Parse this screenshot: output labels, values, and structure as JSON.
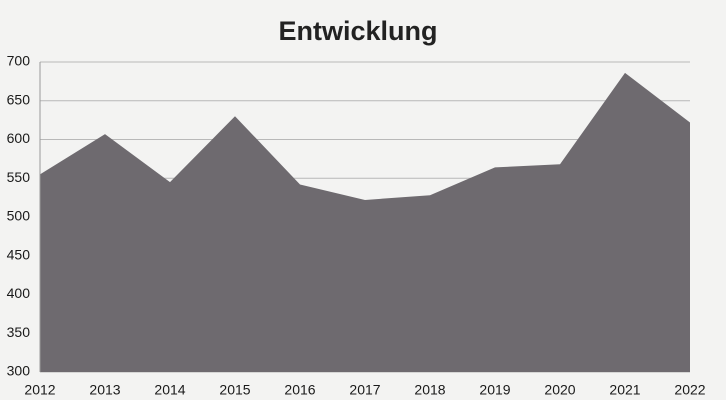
{
  "chart_data": {
    "type": "area",
    "title": "Entwicklung",
    "categories": [
      "2012",
      "2013",
      "2014",
      "2015",
      "2016",
      "2017",
      "2018",
      "2019",
      "2020",
      "2021",
      "2022"
    ],
    "values": [
      555,
      607,
      545,
      630,
      542,
      522,
      528,
      564,
      568,
      686,
      622
    ],
    "color": "#6e6a6f",
    "ylim": [
      300,
      700
    ],
    "yticks": [
      300,
      350,
      400,
      450,
      500,
      550,
      600,
      650,
      700
    ],
    "grid": true
  }
}
